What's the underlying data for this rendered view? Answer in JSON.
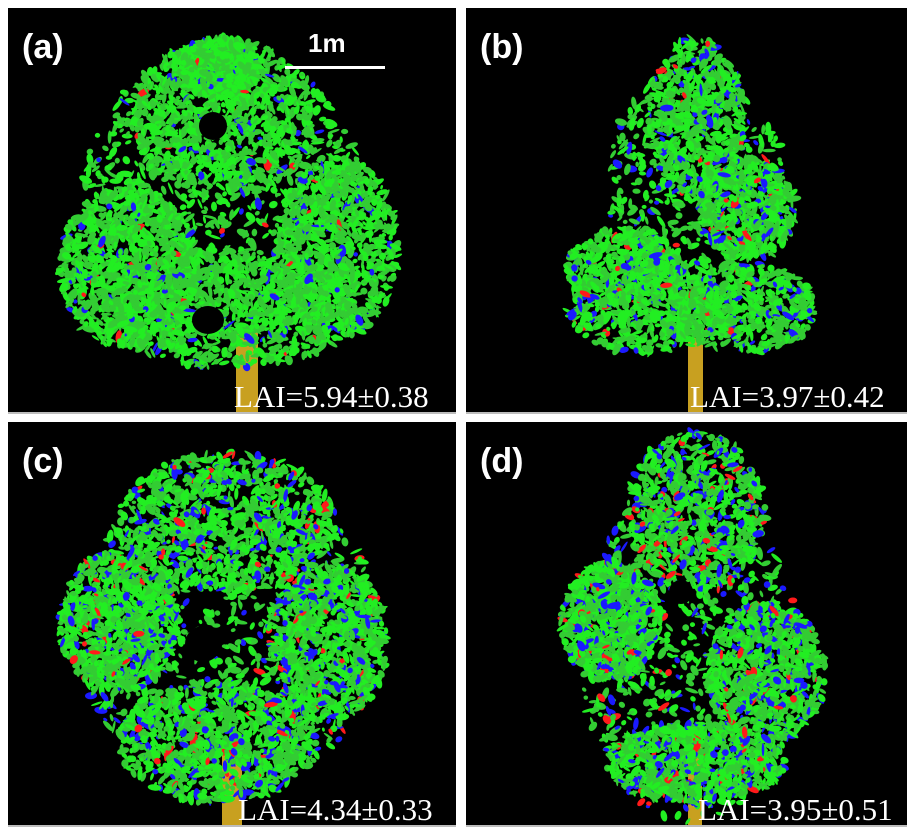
{
  "colors": {
    "background": "#000000",
    "leaf": "#22ee22",
    "leaf_shade": "#33cc33",
    "sunlit_blue": "#1a1aff",
    "red_points": "#ff1a1a",
    "trunk": "#c8a020"
  },
  "panels": [
    {
      "label": "(a)",
      "lai": "LAI=5.94±0.38"
    },
    {
      "label": "(b)",
      "lai": "LAI=3.97±0.42"
    },
    {
      "label": "(c)",
      "lai": "LAI=4.34±0.33"
    },
    {
      "label": "(d)",
      "lai": "LAI=3.95±0.51"
    }
  ],
  "scale_bar": {
    "label": "1m"
  }
}
